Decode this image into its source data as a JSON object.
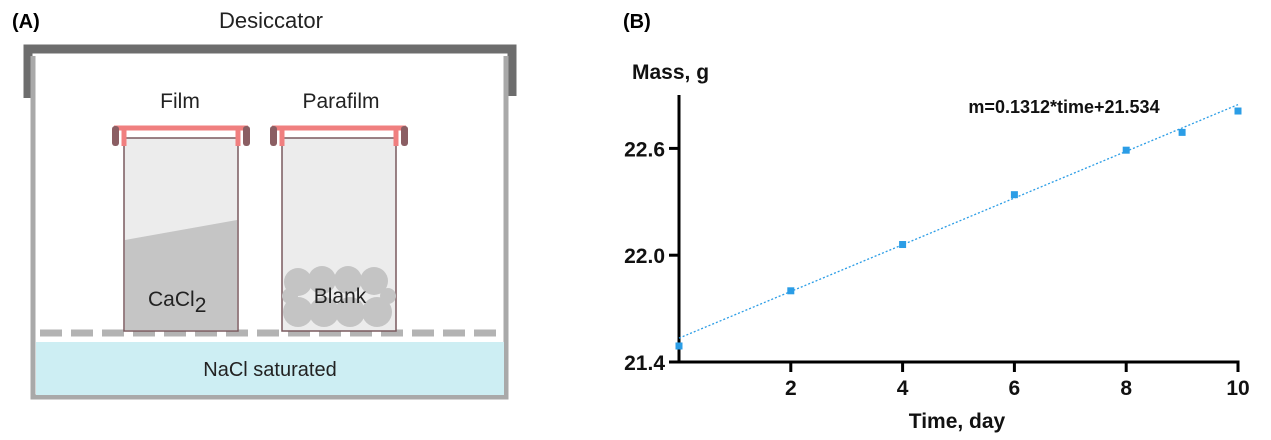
{
  "panel_a": {
    "label": "(A)",
    "title": "Desiccator",
    "jar_left_label": "Film",
    "jar_right_label": "Parafilm",
    "left_content": "CaCl",
    "left_content_subscript": "2",
    "right_content": "Blank",
    "bottom_label": "NaCl saturated"
  },
  "panel_b": {
    "label": "(B)",
    "equation": "m=0.1312*time+21.534"
  },
  "colors": {
    "frame": "#9e9e9e",
    "lid": "#6d6d6d",
    "film": "#f07f7f",
    "cap": "#8b5e63",
    "salt": "#c8c8c8",
    "nacl": "#cdeef3",
    "point": "#2b9de6",
    "fit": "#2b9de6"
  },
  "chart_data": {
    "type": "scatter",
    "title": "",
    "xlabel": "Time, day",
    "ylabel": "Mass, g",
    "xlim": [
      0,
      10
    ],
    "ylim": [
      21.4,
      22.9
    ],
    "xticks": [
      2,
      4,
      6,
      8,
      10
    ],
    "yticks": [
      21.4,
      22.0,
      22.6
    ],
    "ytick_labels": [
      "21.4",
      "22.0",
      "22.6"
    ],
    "grid": false,
    "series": [
      {
        "x": [
          0,
          2,
          4,
          6,
          8,
          9,
          10
        ],
        "y": [
          21.49,
          21.8,
          22.06,
          22.34,
          22.59,
          22.69,
          22.81
        ]
      }
    ],
    "fit": {
      "slope": 0.1312,
      "intercept": 21.534,
      "style": "dotted"
    }
  }
}
